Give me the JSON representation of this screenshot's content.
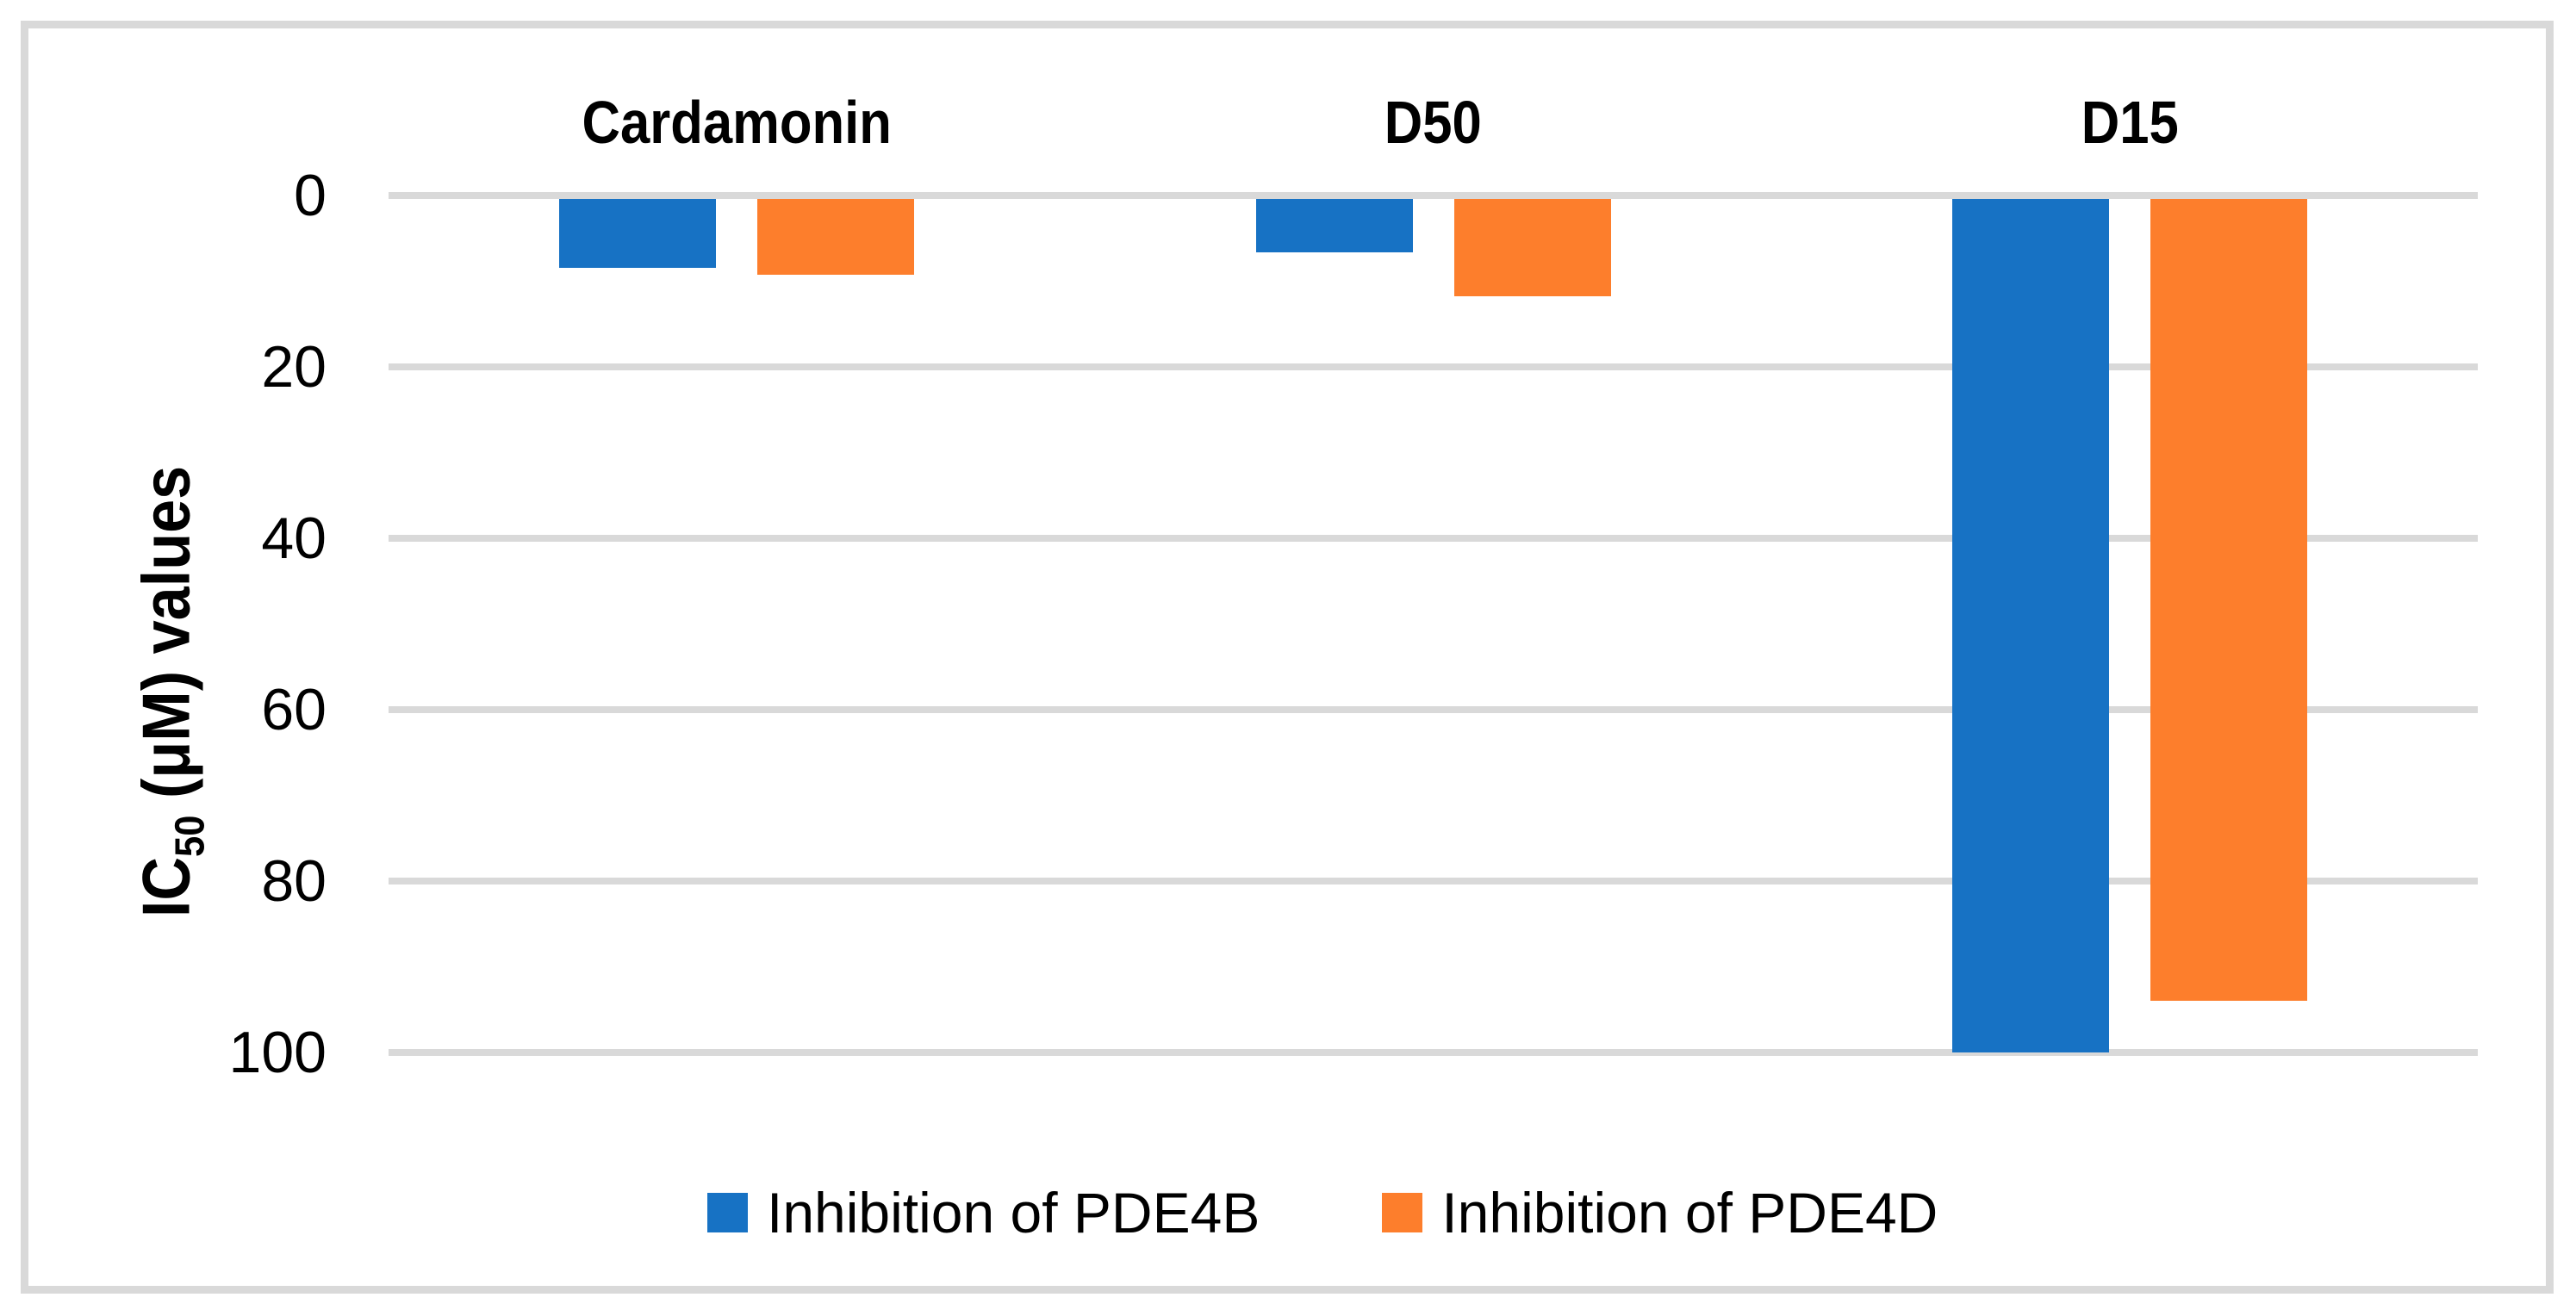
{
  "figure": {
    "background": "#FFFFFF",
    "border_color": "#D9D9D9"
  },
  "chart_data": {
    "type": "bar",
    "title": "",
    "orientation": "vertical",
    "y_axis_inverted": true,
    "bars_hang_downward_from_zero": true,
    "categories": [
      "Cardamonin",
      "D50",
      "D15"
    ],
    "series": [
      {
        "name": "Inhibition of PDE4B",
        "color": "#1772C4",
        "values": [
          8.4,
          6.6,
          100
        ]
      },
      {
        "name": "Inhibition of PDE4D",
        "color": "#FD7E2C",
        "values": [
          9.2,
          11.8,
          94
        ]
      }
    ],
    "ylabel_prefix": "IC",
    "ylabel_subscript": "50",
    "ylabel_suffix": " (μM) values",
    "yticks": [
      0,
      20,
      40,
      60,
      80,
      100
    ],
    "ylim": [
      0,
      100
    ],
    "grid": true,
    "gridline_color": "#D9D9D9",
    "legend_position": "bottom"
  }
}
